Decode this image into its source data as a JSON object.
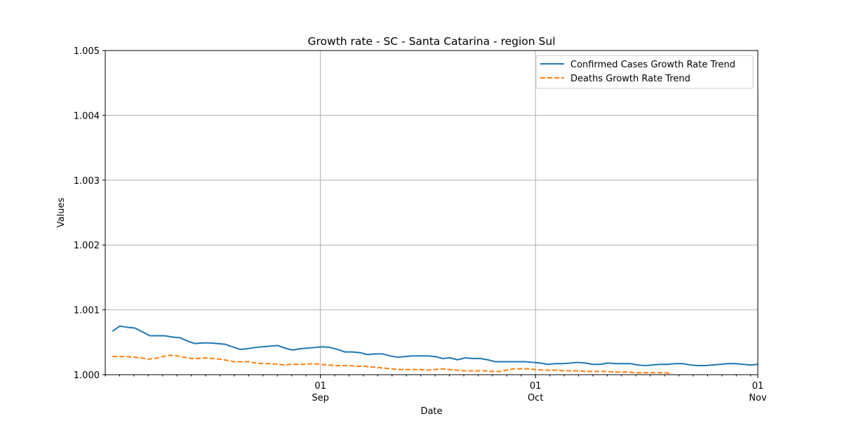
{
  "chart_data": {
    "type": "line",
    "title": "Growth rate - SC - Santa Catarina - region Sul",
    "xlabel": "Date",
    "ylabel": "Values",
    "ylim": [
      1.0,
      1.005
    ],
    "yticks": [
      "1.000",
      "1.001",
      "1.002",
      "1.003",
      "1.004",
      "1.005"
    ],
    "xlim": [
      "2020-08-02",
      "2020-11-01"
    ],
    "xticks": [
      {
        "date": "2020-09-01",
        "day": "01",
        "month": "Sep"
      },
      {
        "date": "2020-10-01",
        "day": "01",
        "month": "Oct"
      },
      {
        "date": "2020-11-01",
        "day": "01",
        "month": "Nov"
      }
    ],
    "grid": true,
    "legend_position": "top-right",
    "x_start": "2020-08-03",
    "x_end": "2020-11-01",
    "series": [
      {
        "name": "Confirmed Cases Growth Rate Trend",
        "color": "#1f77b4",
        "style": "solid",
        "values": [
          1.00067,
          1.00075,
          1.00073,
          1.00072,
          1.00066,
          1.0006,
          1.0006,
          1.0006,
          1.00058,
          1.00057,
          1.00052,
          1.00048,
          1.00049,
          1.00049,
          1.00048,
          1.00047,
          1.00043,
          1.00039,
          1.0004,
          1.00042,
          1.00043,
          1.00044,
          1.00045,
          1.00041,
          1.00038,
          1.0004,
          1.00041,
          1.00042,
          1.00043,
          1.00042,
          1.00039,
          1.00035,
          1.00035,
          1.00034,
          1.00031,
          1.00032,
          1.00032,
          1.00029,
          1.00027,
          1.00028,
          1.00029,
          1.00029,
          1.00029,
          1.00028,
          1.00025,
          1.00026,
          1.00023,
          1.00026,
          1.00025,
          1.00025,
          1.00023,
          1.0002,
          1.0002,
          1.0002,
          1.0002,
          1.0002,
          1.00019,
          1.00018,
          1.00016,
          1.00017,
          1.00017,
          1.00018,
          1.00019,
          1.00018,
          1.00016,
          1.00016,
          1.00018,
          1.00017,
          1.00017,
          1.00017,
          1.00015,
          1.00014,
          1.00015,
          1.00016,
          1.00016,
          1.00017,
          1.00017,
          1.00015,
          1.00014,
          1.00014,
          1.00015,
          1.00016,
          1.00017,
          1.00017,
          1.00016,
          1.00015,
          1.00016
        ]
      },
      {
        "name": "Deaths Growth Rate Trend",
        "color": "#ff7f0e",
        "style": "dashed",
        "values": [
          1.00028,
          1.00028,
          1.00028,
          1.00027,
          1.00026,
          1.00024,
          1.00025,
          1.00028,
          1.0003,
          1.00029,
          1.00027,
          1.00025,
          1.00025,
          1.00026,
          1.00025,
          1.00024,
          1.00022,
          1.0002,
          1.0002,
          1.0002,
          1.00018,
          1.00017,
          1.00017,
          1.00016,
          1.00015,
          1.00016,
          1.00016,
          1.00016,
          1.00017,
          1.00016,
          1.00015,
          1.00014,
          1.00014,
          1.00014,
          1.00013,
          1.00013,
          1.00012,
          1.00011,
          1.0001,
          1.00009,
          1.00008,
          1.00008,
          1.00008,
          1.00008,
          1.00007,
          1.00008,
          1.00009,
          1.00008,
          1.00007,
          1.00006,
          1.00006,
          1.00006,
          1.00006,
          1.00005,
          1.00005,
          1.00007,
          1.00009,
          1.00009,
          1.00009,
          1.00008,
          1.00007,
          1.00007,
          1.00007,
          1.00006,
          1.00006,
          1.00006,
          1.00005,
          1.00005,
          1.00005,
          1.00005,
          1.00004,
          1.00004,
          1.00004,
          1.00003,
          1.00003,
          1.00003,
          1.00003,
          1.00003,
          1.00002
        ]
      }
    ]
  }
}
